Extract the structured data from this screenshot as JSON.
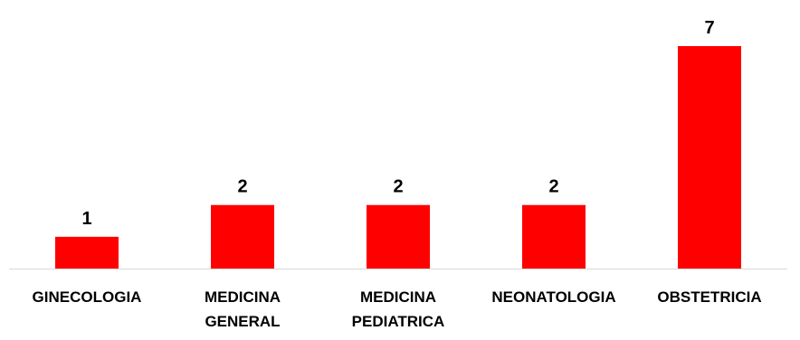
{
  "chart_data": {
    "type": "bar",
    "title": "",
    "xlabel": "",
    "ylabel": "",
    "categories": [
      [
        "GINECOLOGIA"
      ],
      [
        "MEDICINA",
        "GENERAL"
      ],
      [
        "MEDICINA",
        "PEDIATRICA"
      ],
      [
        "NEONATOLOGIA"
      ],
      [
        "OBSTETRICIA"
      ]
    ],
    "values": [
      1,
      2,
      2,
      2,
      7
    ],
    "data_labels": [
      "1",
      "2",
      "2",
      "2",
      "7"
    ],
    "ylim": [
      0,
      7
    ],
    "grid": false,
    "legend": "none",
    "bar_color": "#ff0000",
    "axis_color": "#d9d9d9"
  }
}
